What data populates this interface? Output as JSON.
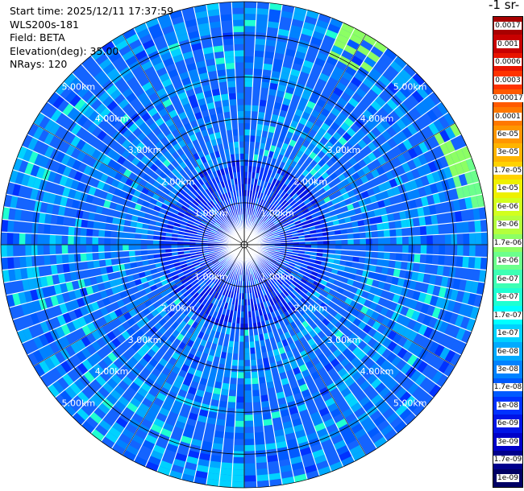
{
  "header": {
    "start_time": "Start time: 2025/12/11 17:37:59",
    "device": "WLS200s-181",
    "field": "Field: BETA",
    "elevation": "Elevation(deg): 35.00",
    "nrays": "NRays: 120"
  },
  "colorbar": {
    "unit_title": "-1 sr-",
    "labels": [
      "0.0017",
      "0.001",
      "0.0006",
      "0.0003",
      "0.00017",
      "0.0001",
      "6e-05",
      "3e-05",
      "1.7e-05",
      "1e-05",
      "6e-06",
      "3e-06",
      "1.7e-06",
      "1e-06",
      "6e-07",
      "3e-07",
      "1.7e-07",
      "1e-07",
      "6e-08",
      "3e-08",
      "1.7e-08",
      "1e-08",
      "6e-09",
      "3e-09",
      "1.7e-09",
      "1e-09"
    ],
    "colors": [
      "#a80000",
      "#c80000",
      "#e81400",
      "#ff3200",
      "#ff5a00",
      "#ff7800",
      "#ff9600",
      "#ffb400",
      "#ffd200",
      "#eef000",
      "#d2ff1e",
      "#b4ff3c",
      "#8cff64",
      "#6cff8c",
      "#3cffb4",
      "#1effd2",
      "#00ffff",
      "#00d2ff",
      "#00aaff",
      "#0082ff",
      "#005aff",
      "#0032ff",
      "#0014e6",
      "#0000c8",
      "#00008c",
      "#000064"
    ]
  },
  "chart_data": {
    "type": "heatmap",
    "projection": "polar PPI",
    "n_rays": 120,
    "ring_labels": [
      "1.00km",
      "2.00km",
      "3.00km",
      "4.00km",
      "5.00km"
    ],
    "range_km": [
      0,
      5.8
    ],
    "grid": true,
    "label_positions": [
      "upper-left",
      "upper-right",
      "lower-left",
      "lower-right"
    ],
    "dominant_color": "#1464ff",
    "features": [
      {
        "azimuth_deg": 30,
        "range_km": [
          5.0,
          5.8
        ],
        "level": "1.7e-06"
      },
      {
        "azimuth_deg": 65,
        "range_km": [
          5.2,
          5.8
        ],
        "level": "1.7e-06"
      },
      {
        "azimuth_deg": 75,
        "range_km": [
          5.2,
          5.8
        ],
        "level": "1e-06"
      },
      {
        "azimuth_deg": 185,
        "range_km": [
          5.2,
          5.8
        ],
        "level": "1e-07"
      }
    ]
  }
}
